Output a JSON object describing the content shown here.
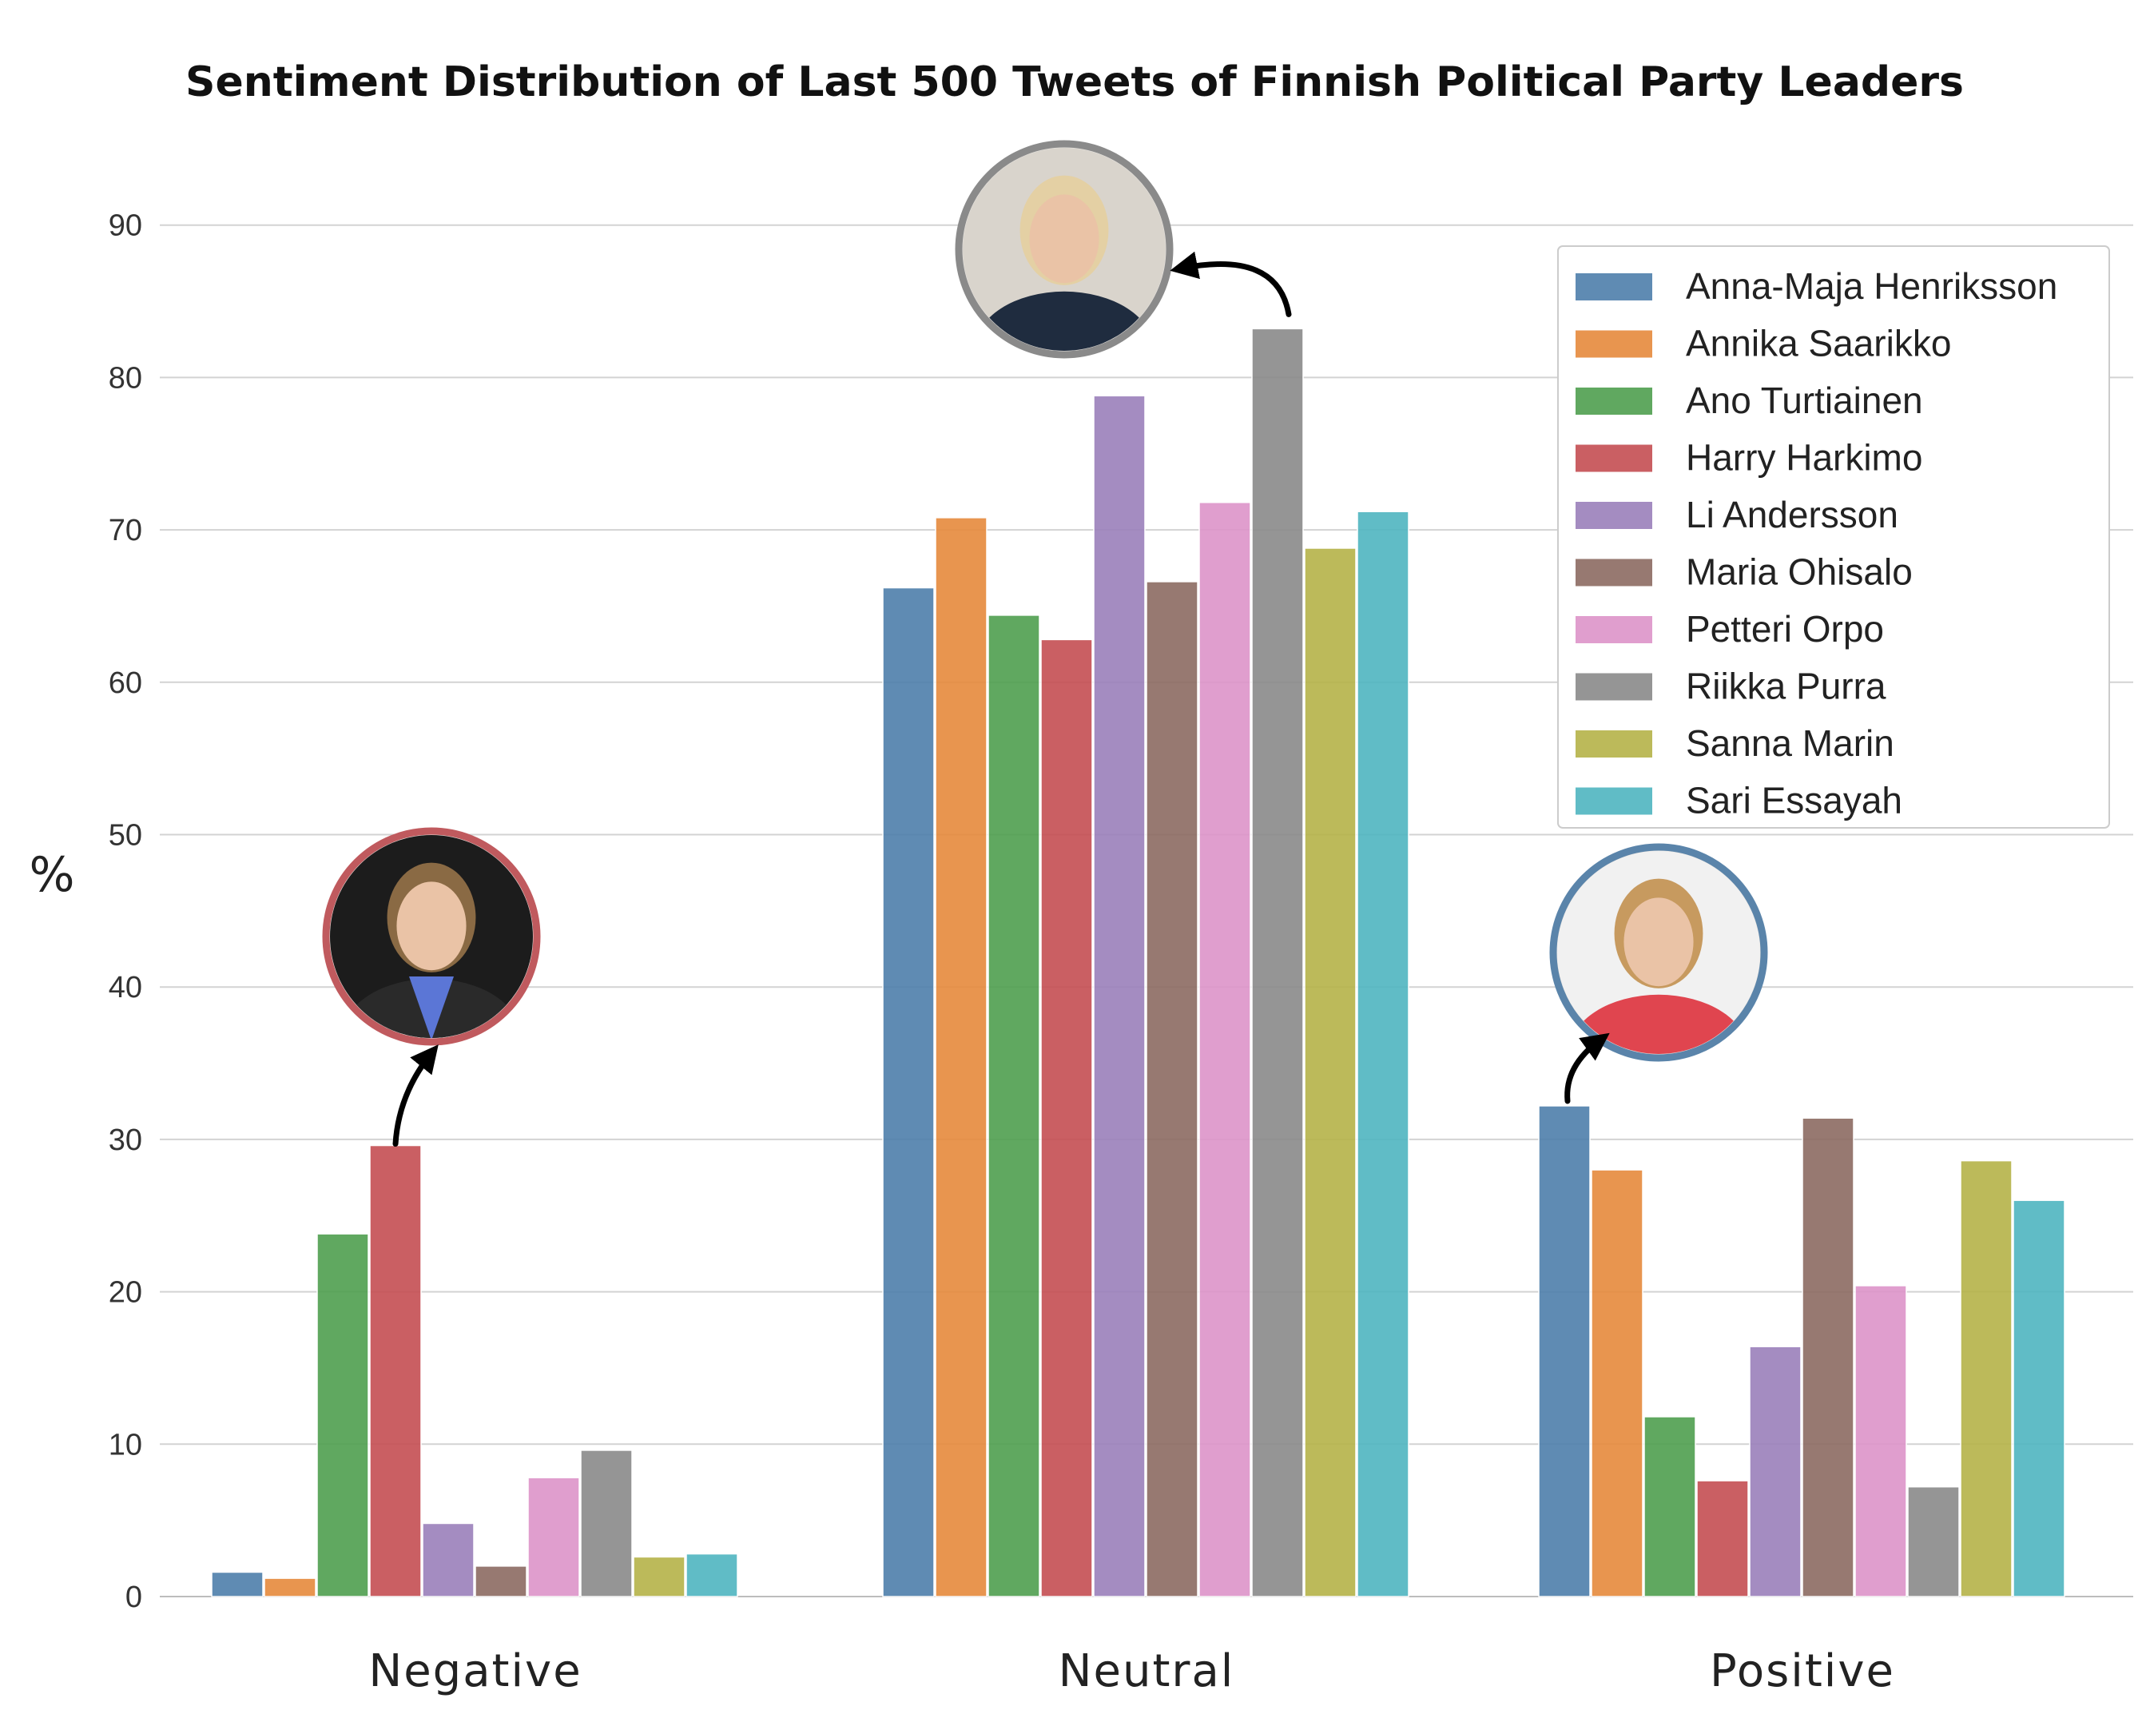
{
  "chart_data": {
    "type": "bar",
    "title": "Sentiment Distribution of Last 500 Tweets of Finnish Political Party Leaders",
    "xlabel": "",
    "ylabel": "%",
    "ylim": [
      0,
      95
    ],
    "yticks": [
      0,
      10,
      20,
      30,
      40,
      50,
      60,
      70,
      80,
      90
    ],
    "grid": true,
    "legend_position": "top-right",
    "categories": [
      "Negative",
      "Neutral",
      "Positive"
    ],
    "series": [
      {
        "name": "Anna-Maja Henriksson",
        "color": "#4e7eab",
        "values": [
          1.6,
          66.2,
          32.2
        ]
      },
      {
        "name": "Annika Saarikko",
        "color": "#e68a3c",
        "values": [
          1.2,
          70.8,
          28.0
        ]
      },
      {
        "name": "Ano Turtiainen",
        "color": "#4f9e4f",
        "values": [
          23.8,
          64.4,
          11.8
        ]
      },
      {
        "name": "Harry Harkimo",
        "color": "#c44e52",
        "values": [
          29.6,
          62.8,
          7.6
        ]
      },
      {
        "name": "Li Andersson",
        "color": "#9a7fba",
        "values": [
          4.8,
          78.8,
          16.4
        ]
      },
      {
        "name": "Maria Ohisalo",
        "color": "#8c6a62",
        "values": [
          2.0,
          66.6,
          31.4
        ]
      },
      {
        "name": "Petteri Orpo",
        "color": "#dd94c9",
        "values": [
          7.8,
          71.8,
          20.4
        ]
      },
      {
        "name": "Riikka Purra",
        "color": "#8a8a8a",
        "values": [
          9.6,
          83.2,
          7.2
        ]
      },
      {
        "name": "Sanna Marin",
        "color": "#b5b348",
        "values": [
          2.6,
          68.8,
          28.6
        ]
      },
      {
        "name": "Sari Essayah",
        "color": "#4fb5c0",
        "values": [
          2.8,
          71.2,
          26.0
        ]
      }
    ],
    "annotations": [
      {
        "label": "Harry Harkimo",
        "category": "Negative",
        "series_index": 3,
        "ring_color": "#c05a5e",
        "icon": "person-photo-harry-harkimo"
      },
      {
        "label": "Riikka Purra",
        "category": "Neutral",
        "series_index": 7,
        "ring_color": "#8a8a8a",
        "icon": "person-photo-riikka-purra"
      },
      {
        "label": "Anna-Maja Henriksson",
        "category": "Positive",
        "series_index": 0,
        "ring_color": "#5a84aa",
        "icon": "person-photo-anna-maja-henriksson"
      }
    ]
  }
}
